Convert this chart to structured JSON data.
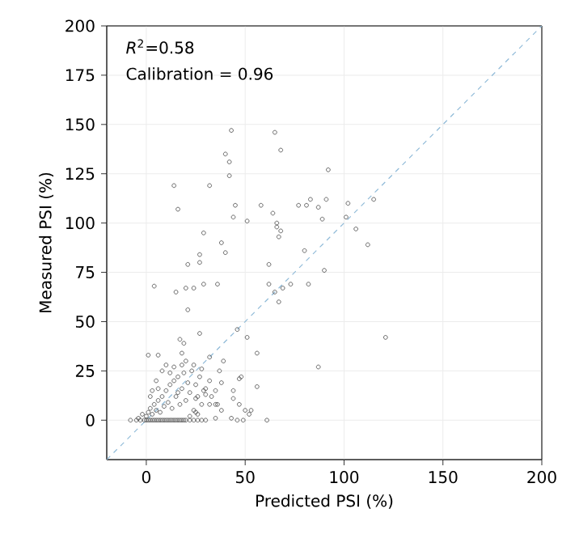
{
  "chart_data": {
    "type": "scatter",
    "xlabel": "Predicted PSI (%)",
    "ylabel": "Measured PSI (%)",
    "xlim": [
      -20,
      200
    ],
    "ylim": [
      -20,
      200
    ],
    "xticks": [
      0,
      50,
      100,
      150,
      200
    ],
    "yticks": [
      0,
      25,
      50,
      75,
      100,
      125,
      150,
      175,
      200
    ],
    "grid": true,
    "annotations": [
      "*R*$^{2}$=0.58",
      "Calibration = 0.96"
    ],
    "series": [
      {
        "marker": "circle",
        "color": "#444444",
        "x": [
          16,
          45,
          58,
          44,
          51,
          64,
          77,
          83,
          91,
          81,
          87,
          89,
          102,
          101,
          115,
          66,
          66,
          68,
          67,
          106,
          112,
          29,
          38,
          40,
          27,
          27,
          21,
          80,
          62,
          90,
          4,
          15,
          20,
          24,
          29,
          36,
          62,
          65,
          69,
          73,
          82,
          67,
          21,
          46,
          51,
          121,
          27,
          17,
          19,
          18,
          56,
          32,
          1,
          6,
          39,
          87,
          37,
          47,
          38,
          56,
          44,
          44,
          47,
          50,
          53,
          52,
          61,
          49,
          46,
          43,
          38,
          35,
          30,
          32,
          35,
          25,
          30,
          29,
          25,
          43,
          65,
          68,
          40,
          42,
          42,
          92,
          14,
          32,
          48,
          35,
          -8,
          -5,
          -3,
          -1,
          0,
          1,
          2,
          3,
          4,
          5,
          6,
          7,
          8,
          9,
          10,
          11,
          12,
          13,
          14,
          15,
          16,
          17,
          18,
          19,
          20,
          22,
          24,
          26,
          28,
          0,
          1,
          2,
          3,
          4,
          5,
          6,
          7,
          8,
          9,
          10,
          11,
          12,
          13,
          14,
          15,
          16,
          17,
          18,
          19,
          20,
          21,
          22,
          23,
          24,
          25,
          26,
          27,
          28,
          30,
          32,
          5,
          8,
          3,
          10,
          14,
          18,
          20,
          24,
          -2,
          -4,
          2,
          6,
          12,
          16,
          28,
          33,
          36,
          26,
          22
        ],
        "values": [
          107,
          109,
          109,
          103,
          101,
          105,
          109,
          112,
          112,
          109,
          108,
          102,
          110,
          103,
          112,
          100,
          98,
          96,
          93,
          97,
          89,
          95,
          90,
          85,
          84,
          80,
          79,
          86,
          79,
          76,
          68,
          65,
          67,
          67,
          69,
          69,
          69,
          65,
          67,
          69,
          69,
          60,
          56,
          46,
          42,
          42,
          44,
          41,
          39,
          34,
          34,
          32,
          33,
          33,
          30,
          27,
          25,
          21,
          19,
          17,
          15,
          11,
          8,
          5,
          5,
          3,
          0,
          0,
          0,
          1,
          5,
          1,
          0,
          8,
          8,
          4,
          13,
          15,
          11,
          147,
          146,
          137,
          135,
          131,
          124,
          127,
          119,
          119,
          22,
          15,
          0,
          0,
          0,
          0,
          0,
          0,
          0,
          0,
          0,
          0,
          0,
          0,
          0,
          0,
          0,
          0,
          0,
          0,
          0,
          0,
          0,
          0,
          0,
          0,
          0,
          0,
          0,
          0,
          0,
          2,
          4,
          6,
          3,
          8,
          5,
          10,
          4,
          12,
          7,
          15,
          9,
          18,
          6,
          20,
          12,
          22,
          8,
          16,
          24,
          10,
          19,
          14,
          25,
          5,
          18,
          12,
          22,
          8,
          16,
          20,
          20,
          25,
          15,
          28,
          27,
          28,
          30,
          28,
          3,
          1,
          12,
          16,
          24,
          14,
          26,
          12,
          8,
          3,
          2
        ]
      },
      {
        "type": "line",
        "color": "#8fbad8",
        "line_style": "dashed",
        "x": [
          -20,
          200
        ],
        "values": [
          -20,
          200
        ]
      }
    ]
  }
}
